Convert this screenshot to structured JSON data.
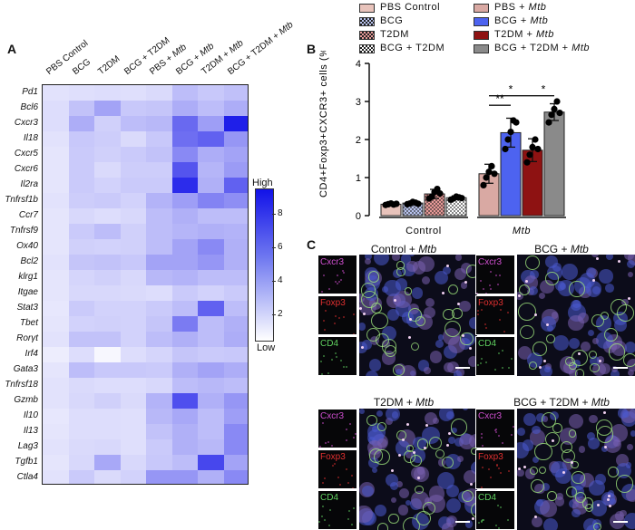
{
  "panel_labels": {
    "a": "A",
    "b": "B",
    "c": "C"
  },
  "heatmap": {
    "columns": [
      "PBS Control",
      "BCG",
      "T2DM",
      "BCG + T2DM",
      "PBS + Mtb",
      "BCG + Mtb",
      "T2DM + Mtb",
      "BCG + T2DM + Mtb"
    ],
    "genes": [
      "Pd1",
      "Bcl6",
      "Cxcr3",
      "Il18",
      "Cxcr5",
      "Cxcr6",
      "Il2ra",
      "Tnfrsf1b",
      "Ccr7",
      "Tnfrsf9",
      "Ox40",
      "Bcl2",
      "klrg1",
      "Itgae",
      "Stat3",
      "Tbet",
      "Rorγt",
      "Irf4",
      "Gata3",
      "Tnfrsf18",
      "Gzmb",
      "Il10",
      "Il13",
      "Lag3",
      "Tgfb1",
      "Ctla4"
    ],
    "values": [
      [
        1.6,
        1.7,
        1.8,
        1.7,
        1.9,
        3.0,
        2.6,
        2.9
      ],
      [
        1.8,
        2.8,
        4.0,
        2.6,
        2.7,
        3.6,
        3.0,
        3.6
      ],
      [
        1.8,
        3.6,
        2.3,
        3.0,
        3.2,
        6.2,
        4.2,
        9.0
      ],
      [
        1.6,
        2.6,
        2.4,
        1.9,
        2.6,
        6.0,
        6.5,
        4.5
      ],
      [
        1.5,
        2.5,
        2.3,
        2.5,
        2.8,
        5.0,
        3.6,
        4.0
      ],
      [
        1.5,
        2.5,
        1.9,
        2.4,
        2.4,
        7.0,
        3.3,
        4.3
      ],
      [
        1.5,
        2.5,
        2.2,
        2.5,
        2.5,
        8.5,
        3.5,
        6.5
      ],
      [
        1.6,
        2.4,
        2.5,
        2.2,
        3.4,
        4.2,
        5.2,
        4.8
      ],
      [
        1.5,
        2.0,
        1.8,
        2.0,
        3.0,
        3.5,
        3.0,
        3.0
      ],
      [
        1.5,
        2.5,
        3.0,
        2.3,
        3.0,
        3.3,
        3.5,
        3.4
      ],
      [
        1.5,
        2.3,
        2.2,
        2.3,
        3.0,
        4.0,
        5.0,
        3.5
      ],
      [
        1.6,
        2.7,
        2.8,
        2.6,
        4.0,
        4.0,
        4.5,
        3.5
      ],
      [
        1.5,
        2.1,
        2.3,
        2.0,
        3.2,
        3.4,
        3.0,
        3.0
      ],
      [
        1.5,
        2.0,
        2.0,
        1.9,
        1.8,
        2.5,
        2.2,
        2.5
      ],
      [
        1.4,
        2.5,
        2.2,
        2.2,
        2.5,
        3.0,
        6.5,
        3.0
      ],
      [
        1.5,
        2.2,
        2.3,
        2.2,
        2.7,
        5.5,
        3.0,
        3.5
      ],
      [
        1.6,
        2.8,
        2.8,
        2.2,
        3.0,
        3.5,
        3.0,
        3.6
      ],
      [
        1.2,
        1.8,
        0.8,
        1.8,
        2.1,
        2.7,
        2.5,
        2.6
      ],
      [
        1.5,
        3.0,
        2.6,
        2.6,
        2.5,
        3.5,
        4.0,
        3.6
      ],
      [
        1.6,
        1.9,
        1.8,
        1.8,
        2.0,
        3.0,
        3.2,
        3.0
      ],
      [
        1.6,
        2.0,
        2.3,
        1.9,
        3.4,
        7.2,
        3.5,
        4.5
      ],
      [
        1.4,
        1.8,
        1.8,
        1.7,
        3.2,
        3.8,
        3.0,
        4.2
      ],
      [
        1.5,
        1.8,
        1.8,
        1.7,
        2.8,
        3.5,
        3.0,
        5.0
      ],
      [
        1.6,
        1.9,
        2.0,
        1.7,
        2.5,
        3.5,
        3.2,
        5.0
      ],
      [
        1.5,
        2.0,
        3.8,
        2.0,
        2.6,
        3.0,
        7.5,
        4.0
      ],
      [
        1.6,
        2.5,
        1.9,
        2.2,
        4.5,
        4.5,
        3.5,
        5.0
      ]
    ],
    "colorbar": {
      "title": "High",
      "bottom_label": "Low",
      "ticks": [
        2,
        4,
        6,
        8
      ],
      "min": 0.5,
      "max": 9.5
    }
  },
  "chart_data": {
    "type": "bar",
    "ylabel": "CD4+Foxp3+CXCR3+ cells (%)",
    "ylim": [
      0,
      4
    ],
    "yticks": [
      0,
      1,
      2,
      3,
      4
    ],
    "groups": [
      "Control",
      "Mtb"
    ],
    "legend": [
      {
        "label": "PBS Control",
        "color": "#e8c3bb",
        "pattern": "none"
      },
      {
        "label": "BCG",
        "color": "#b9c4ee",
        "pattern": "check"
      },
      {
        "label": "T2DM",
        "color": "#e89a98",
        "pattern": "check"
      },
      {
        "label": "BCG + T2DM",
        "color": "#ffffff",
        "pattern": "check"
      },
      {
        "label": "PBS + Mtb",
        "color": "#d9a9a3",
        "pattern": "none"
      },
      {
        "label": "BCG + Mtb",
        "color": "#4d63f0",
        "pattern": "none"
      },
      {
        "label": "T2DM + Mtb",
        "color": "#8e1212",
        "pattern": "none"
      },
      {
        "label": "BCG + T2DM + Mtb",
        "color": "#8a8a8a",
        "pattern": "none"
      }
    ],
    "series": [
      {
        "name": "PBS Control",
        "values": [
          0.3
        ],
        "error": 0.03,
        "points": [
          0.28,
          0.3,
          0.32,
          0.29,
          0.31
        ]
      },
      {
        "name": "BCG",
        "values": [
          0.33
        ],
        "error": 0.04,
        "points": [
          0.3,
          0.32,
          0.36,
          0.34,
          0.31
        ]
      },
      {
        "name": "T2DM",
        "values": [
          0.57
        ],
        "error": 0.12,
        "points": [
          0.45,
          0.5,
          0.62,
          0.7,
          0.58
        ]
      },
      {
        "name": "BCG + T2DM",
        "values": [
          0.47
        ],
        "error": 0.05,
        "points": [
          0.42,
          0.45,
          0.5,
          0.48,
          0.46
        ]
      },
      {
        "name": "PBS + Mtb",
        "values": [
          1.1
        ],
        "error": 0.25,
        "points": [
          0.8,
          1.0,
          1.15,
          1.3,
          1.1
        ]
      },
      {
        "name": "BCG + Mtb",
        "values": [
          2.18
        ],
        "error": 0.38,
        "points": [
          1.75,
          2.0,
          2.2,
          2.5,
          2.45
        ]
      },
      {
        "name": "T2DM + Mtb",
        "values": [
          1.72
        ],
        "error": 0.3,
        "points": [
          1.4,
          1.6,
          1.8,
          2.0,
          1.75
        ]
      },
      {
        "name": "BCG + T2DM + Mtb",
        "values": [
          2.72
        ],
        "error": 0.22,
        "points": [
          2.45,
          2.65,
          2.8,
          3.0,
          2.7
        ]
      }
    ],
    "significance": [
      {
        "from": "PBS + Mtb",
        "to": "BCG + Mtb",
        "label": "**",
        "y": 2.9
      },
      {
        "from": "PBS + Mtb",
        "to": "T2DM + Mtb",
        "label": "*",
        "y": 3.15
      },
      {
        "from": "T2DM + Mtb",
        "to": "BCG + T2DM + Mtb",
        "label": "*",
        "y": 3.15
      }
    ]
  },
  "micrographs": {
    "panels": [
      {
        "title": "Control + Mtb"
      },
      {
        "title": "BCG + Mtb"
      },
      {
        "title": "T2DM + Mtb"
      },
      {
        "title": "BCG + T2DM + Mtb"
      }
    ],
    "channels": [
      {
        "label": "Cxcr3",
        "color": "#d04fd0"
      },
      {
        "label": "Foxp3",
        "color": "#e03030"
      },
      {
        "label": "CD4",
        "color": "#5fcf5f"
      }
    ]
  }
}
